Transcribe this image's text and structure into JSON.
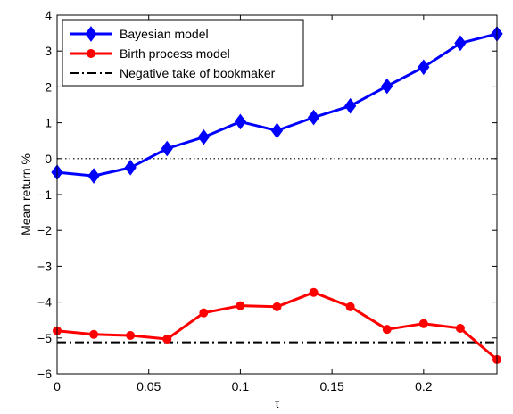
{
  "chart_data": {
    "type": "line",
    "xlabel": "τ",
    "ylabel": "Mean return %",
    "xlim": [
      0,
      0.24
    ],
    "ylim": [
      -6,
      4
    ],
    "xticks": [
      0,
      0.05,
      0.1,
      0.15,
      0.2
    ],
    "xtick_labels": [
      "0",
      "0.05",
      "0.1",
      "0.15",
      "0.2"
    ],
    "yticks": [
      -6,
      -5,
      -4,
      -3,
      -2,
      -1,
      0,
      1,
      2,
      3,
      4
    ],
    "ytick_labels": [
      "−6",
      "−5",
      "−4",
      "−3",
      "−2",
      "−1",
      "0",
      "1",
      "2",
      "3",
      "4"
    ],
    "grid": false,
    "legend_position": "top-left",
    "x": [
      0,
      0.02,
      0.04,
      0.06,
      0.08,
      0.1,
      0.12,
      0.14,
      0.16,
      0.18,
      0.2,
      0.22,
      0.24
    ],
    "series": [
      {
        "name": "Bayesian model",
        "color": "#0000ff",
        "marker": "diamond",
        "values": [
          -0.38,
          -0.48,
          -0.25,
          0.28,
          0.6,
          1.03,
          0.78,
          1.15,
          1.47,
          2.02,
          2.55,
          3.22,
          3.48
        ]
      },
      {
        "name": "Birth process model",
        "color": "#ff0000",
        "marker": "circle",
        "values": [
          -4.8,
          -4.9,
          -4.93,
          -5.03,
          -4.3,
          -4.1,
          -4.13,
          -3.73,
          -4.13,
          -4.76,
          -4.6,
          -4.73,
          -5.6
        ]
      }
    ],
    "reference_lines": [
      {
        "name": "Negative take of bookmaker",
        "y": -5.12,
        "color": "#000000",
        "style": "dash-dot"
      },
      {
        "name": "",
        "y": 0,
        "color": "#000000",
        "style": "dotted"
      }
    ]
  }
}
